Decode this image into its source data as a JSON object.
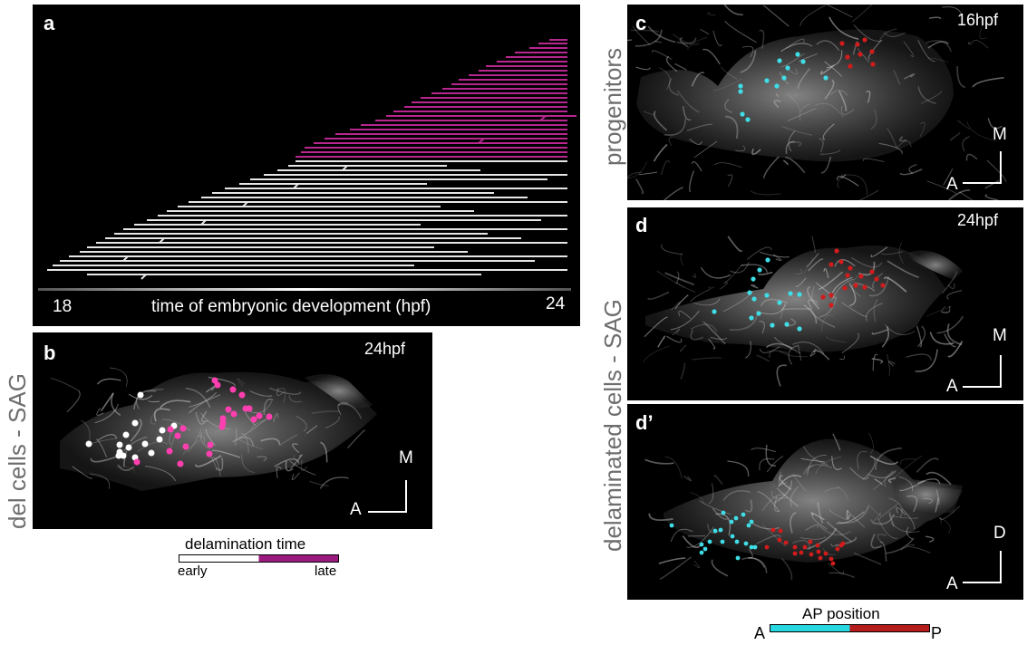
{
  "panels": {
    "a": {
      "label": "a",
      "axis_start": "18",
      "axis_end": "24",
      "axis_caption": "time of embryonic development (hpf)"
    },
    "b": {
      "label": "b",
      "stage": "24hpf",
      "axis_a": "A",
      "axis_b": "M"
    },
    "c": {
      "label": "c",
      "stage": "16hpf",
      "axis_a": "A",
      "axis_b": "M"
    },
    "d": {
      "label": "d",
      "stage": "24hpf",
      "axis_a": "A",
      "axis_b": "M"
    },
    "d2": {
      "label": "d’",
      "axis_a": "A",
      "axis_b": "D"
    }
  },
  "side_labels": {
    "left": "del cells - SAG",
    "progenitors": "progenitors",
    "delaminated": "delaminated cells - SAG"
  },
  "legends": {
    "delamination": {
      "title": "delamination time",
      "early": "early",
      "late": "late",
      "colors": [
        "#ffffff",
        "#9b1a7f"
      ]
    },
    "ap": {
      "title": "AP position",
      "start": "A",
      "end": "P",
      "colors": [
        "#27d8e0",
        "#b51c1c"
      ]
    }
  },
  "colors": {
    "late_track": "#b7278f",
    "early_track": "#e6e6e6",
    "cyan_cell": "#3fdde6",
    "red_cell": "#d21c1c",
    "pink_cell": "#ff3fb0",
    "white_cell": "#ffffff"
  }
}
